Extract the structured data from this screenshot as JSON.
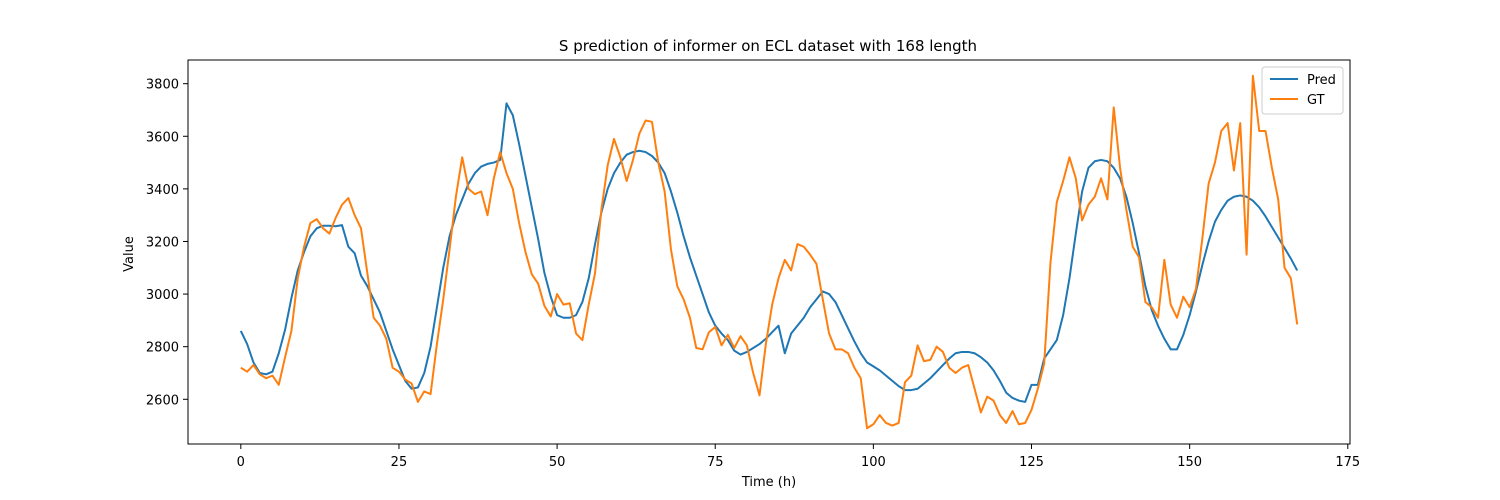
{
  "chart_data": {
    "type": "line",
    "title": "S prediction of informer on ECL dataset with 168 length",
    "xlabel": "Time (h)",
    "ylabel": "Value",
    "xlim": [
      -8.35,
      175.35
    ],
    "ylim": [
      2430,
      3890
    ],
    "xticks": [
      0,
      25,
      50,
      75,
      100,
      125,
      150,
      175
    ],
    "yticks": [
      2600,
      2800,
      3000,
      3200,
      3400,
      3600,
      3800
    ],
    "grid": false,
    "legend_position": "upper right",
    "series": [
      {
        "name": "Pred",
        "color": "#1f77b4",
        "values": [
          2860,
          2810,
          2740,
          2700,
          2695,
          2705,
          2775,
          2865,
          2985,
          3090,
          3160,
          3220,
          3250,
          3260,
          3260,
          3258,
          3262,
          3180,
          3155,
          3070,
          3030,
          2980,
          2930,
          2860,
          2790,
          2730,
          2670,
          2640,
          2645,
          2700,
          2800,
          2950,
          3100,
          3220,
          3300,
          3360,
          3420,
          3460,
          3485,
          3495,
          3500,
          3510,
          3725,
          3680,
          3570,
          3450,
          3330,
          3210,
          3080,
          2990,
          2920,
          2910,
          2910,
          2920,
          2970,
          3060,
          3190,
          3310,
          3400,
          3460,
          3500,
          3530,
          3540,
          3545,
          3540,
          3525,
          3500,
          3460,
          3390,
          3310,
          3220,
          3140,
          3070,
          3000,
          2930,
          2880,
          2850,
          2825,
          2785,
          2770,
          2780,
          2795,
          2810,
          2830,
          2855,
          2880,
          2775,
          2850,
          2880,
          2910,
          2950,
          2980,
          3010,
          3000,
          2970,
          2920,
          2870,
          2820,
          2775,
          2740,
          2725,
          2710,
          2690,
          2670,
          2650,
          2635,
          2635,
          2640,
          2660,
          2680,
          2705,
          2730,
          2755,
          2775,
          2780,
          2780,
          2775,
          2760,
          2740,
          2710,
          2670,
          2625,
          2605,
          2595,
          2590,
          2655,
          2655,
          2755,
          2790,
          2825,
          2920,
          3060,
          3230,
          3390,
          3480,
          3505,
          3510,
          3505,
          3480,
          3440,
          3370,
          3270,
          3155,
          3030,
          2940,
          2880,
          2830,
          2790,
          2790,
          2845,
          2920,
          3010,
          3110,
          3200,
          3275,
          3320,
          3355,
          3370,
          3375,
          3370,
          3355,
          3330,
          3295,
          3255,
          3215,
          3175,
          3135,
          3090
        ]
      },
      {
        "name": "GT",
        "color": "#ff7f0e",
        "values": [
          2720,
          2705,
          2730,
          2695,
          2680,
          2690,
          2655,
          2760,
          2860,
          3060,
          3180,
          3270,
          3285,
          3250,
          3230,
          3290,
          3340,
          3365,
          3300,
          3250,
          3080,
          2910,
          2880,
          2830,
          2720,
          2705,
          2675,
          2660,
          2590,
          2630,
          2620,
          2810,
          2980,
          3170,
          3370,
          3520,
          3400,
          3380,
          3390,
          3300,
          3440,
          3540,
          3460,
          3400,
          3270,
          3160,
          3075,
          3040,
          2955,
          2915,
          3000,
          2960,
          2965,
          2850,
          2825,
          2960,
          3080,
          3320,
          3490,
          3590,
          3520,
          3430,
          3510,
          3610,
          3660,
          3655,
          3500,
          3390,
          3170,
          3030,
          2980,
          2910,
          2795,
          2790,
          2855,
          2875,
          2805,
          2845,
          2795,
          2840,
          2805,
          2700,
          2615,
          2810,
          2960,
          3060,
          3130,
          3090,
          3190,
          3180,
          3150,
          3115,
          2980,
          2850,
          2790,
          2790,
          2775,
          2720,
          2680,
          2490,
          2505,
          2540,
          2510,
          2500,
          2510,
          2665,
          2690,
          2805,
          2745,
          2750,
          2800,
          2780,
          2720,
          2700,
          2720,
          2730,
          2640,
          2550,
          2610,
          2595,
          2540,
          2510,
          2555,
          2505,
          2510,
          2560,
          2640,
          2735,
          3120,
          3350,
          3430,
          3520,
          3440,
          3280,
          3340,
          3370,
          3440,
          3360,
          3710,
          3480,
          3320,
          3180,
          3140,
          2970,
          2950,
          2910,
          3130,
          2960,
          2910,
          2990,
          2950,
          3020,
          3210,
          3420,
          3500,
          3620,
          3650,
          3470,
          3650,
          3150,
          3830,
          3620,
          3620,
          3480,
          3360,
          3100,
          3060,
          2885
        ]
      }
    ]
  }
}
